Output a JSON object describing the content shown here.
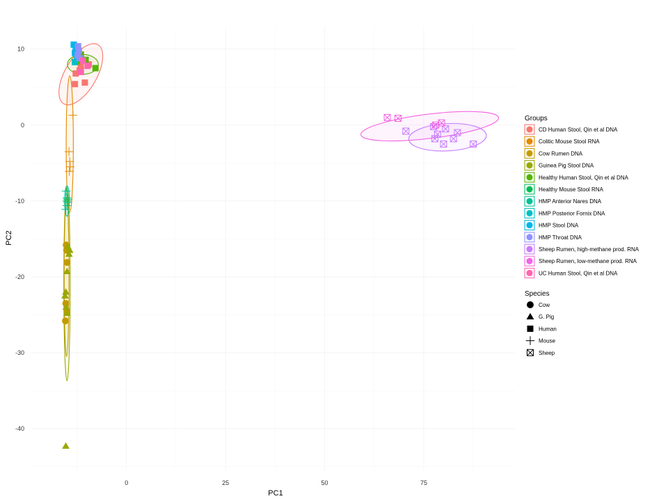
{
  "chart_data": {
    "type": "scatter",
    "title": "",
    "xlabel": "PC1",
    "ylabel": "PC2",
    "xlim": [
      -24,
      98
    ],
    "ylim": [
      -45.5,
      13
    ],
    "x_ticks": [
      0,
      25,
      50,
      75
    ],
    "x_tick_labels": [
      "0",
      "25",
      "50",
      "75"
    ],
    "y_ticks": [
      10,
      0,
      -10,
      -20,
      -30,
      -40
    ],
    "y_tick_labels": [
      "10",
      "0",
      "-10",
      "-20",
      "-30",
      "-40"
    ],
    "grid": true,
    "legend_position": "right",
    "legends": [
      {
        "title": "Groups",
        "entries": [
          {
            "label": "CD Human Stool, Qin et al DNA",
            "color": "#F8766D"
          },
          {
            "label": "Colitic Mouse Stool RNA",
            "color": "#E38900"
          },
          {
            "label": "Cow Rumen DNA",
            "color": "#C49A00"
          },
          {
            "label": "Guinea Pig Stool DNA",
            "color": "#99A800"
          },
          {
            "label": "Healthy Human Stool, Qin et al DNA",
            "color": "#53B400"
          },
          {
            "label": "Healthy Mouse Stool RNA",
            "color": "#00BC56"
          },
          {
            "label": "HMP Anterior Nares DNA",
            "color": "#00C094"
          },
          {
            "label": "HMP Posterior Fornix DNA",
            "color": "#00BFC4"
          },
          {
            "label": "HMP Stool DNA",
            "color": "#00B6EB"
          },
          {
            "label": "HMP Throat DNA",
            "color": "#8F91FF"
          },
          {
            "label": "Sheep Rumen, high-methane prod. RNA",
            "color": "#C77CFF"
          },
          {
            "label": "Sheep Rumen, low-methane prod. RNA",
            "color": "#F564E3"
          },
          {
            "label": "UC Human Stool, Qin et al DNA",
            "color": "#FF64B0"
          }
        ]
      },
      {
        "title": "Species",
        "entries": [
          {
            "label": "Cow",
            "shape": "circle"
          },
          {
            "label": "G. Pig",
            "shape": "triangle"
          },
          {
            "label": "Human",
            "shape": "square"
          },
          {
            "label": "Mouse",
            "shape": "plus"
          },
          {
            "label": "Sheep",
            "shape": "boxcross"
          }
        ]
      }
    ],
    "series": [
      {
        "group": "CD Human Stool, Qin et al DNA",
        "color": "#F8766D",
        "shape": "square",
        "points": [
          [
            -13.0,
            5.4
          ],
          [
            -10.5,
            5.6
          ],
          [
            -12.8,
            6.8
          ],
          [
            -11.5,
            7.8
          ],
          [
            -10.5,
            8.5
          ],
          [
            -11.8,
            7.2
          ],
          [
            -9.5,
            8.0
          ]
        ]
      },
      {
        "group": "Colitic Mouse Stool RNA",
        "color": "#E38900",
        "shape": "plus",
        "points": [
          [
            -13.5,
            1.3
          ],
          [
            -14.5,
            -3.5
          ],
          [
            -14.3,
            -4.8
          ],
          [
            -14.2,
            -5.5
          ],
          [
            -14.4,
            -6.1
          ]
        ]
      },
      {
        "group": "Cow Rumen DNA",
        "color": "#C49A00",
        "shape": "circle",
        "points": [
          [
            -15.2,
            -15.8
          ],
          [
            -15.0,
            -18.1
          ],
          [
            -15.3,
            -23.5
          ],
          [
            -15.0,
            -24.6
          ],
          [
            -15.4,
            -25.8
          ],
          [
            -15.1,
            -16.5
          ]
        ]
      },
      {
        "group": "Guinea Pig Stool DNA",
        "color": "#99A800",
        "shape": "triangle",
        "points": [
          [
            -14.8,
            -16.0
          ],
          [
            -14.3,
            -16.5
          ],
          [
            -14.5,
            -17.0
          ],
          [
            -15.0,
            -19.3
          ],
          [
            -15.3,
            -22.0
          ],
          [
            -15.5,
            -22.5
          ],
          [
            -15.2,
            -24.0
          ],
          [
            -15.0,
            -24.8
          ],
          [
            -15.3,
            -42.3
          ]
        ]
      },
      {
        "group": "Healthy Human Stool, Qin et al DNA",
        "color": "#53B400",
        "shape": "square",
        "points": [
          [
            -10.3,
            8.6
          ],
          [
            -7.8,
            7.5
          ],
          [
            -11.5,
            9.3
          ],
          [
            -12.5,
            8.4
          ]
        ]
      },
      {
        "group": "Healthy Mouse Stool RNA",
        "color": "#00BC56",
        "shape": "plus",
        "points": [
          [
            -15.0,
            -10.0
          ],
          [
            -14.8,
            -9.8
          ]
        ]
      },
      {
        "group": "HMP Anterior Nares DNA",
        "color": "#00C094",
        "shape": "plus",
        "points": [
          [
            -15.2,
            -8.7
          ],
          [
            -15.0,
            -9.6
          ],
          [
            -14.8,
            -10.2
          ],
          [
            -15.3,
            -11.1
          ],
          [
            -15.0,
            -10.6
          ]
        ]
      },
      {
        "group": "HMP Posterior Fornix DNA",
        "color": "#00BFC4",
        "shape": "square",
        "points": [
          [
            -13.0,
            8.3
          ],
          [
            -12.5,
            9.0
          ]
        ]
      },
      {
        "group": "HMP Stool DNA",
        "color": "#00B6EB",
        "shape": "square",
        "points": [
          [
            -13.3,
            10.6
          ],
          [
            -12.8,
            10.0
          ],
          [
            -13.0,
            9.5
          ]
        ]
      },
      {
        "group": "HMP Throat DNA",
        "color": "#8F91FF",
        "shape": "square",
        "points": [
          [
            -12.2,
            10.4
          ],
          [
            -12.0,
            9.8
          ],
          [
            -12.3,
            9.2
          ],
          [
            -11.8,
            8.8
          ]
        ]
      },
      {
        "group": "Sheep Rumen, high-methane prod. RNA",
        "color": "#C77CFF",
        "shape": "boxcross",
        "points": [
          [
            70.5,
            -0.8
          ],
          [
            77.5,
            -0.2
          ],
          [
            78.5,
            -1.2
          ],
          [
            80.5,
            -0.5
          ],
          [
            82.5,
            -1.8
          ],
          [
            83.5,
            -1.0
          ],
          [
            77.8,
            -1.8
          ],
          [
            80.0,
            -2.5
          ],
          [
            87.5,
            -2.5
          ]
        ]
      },
      {
        "group": "Sheep Rumen, low-methane prod. RNA",
        "color": "#F564E3",
        "shape": "boxcross",
        "points": [
          [
            65.8,
            1.0
          ],
          [
            68.5,
            0.9
          ],
          [
            78.0,
            0.0
          ],
          [
            79.5,
            0.3
          ]
        ]
      },
      {
        "group": "UC Human Stool, Qin et al DNA",
        "color": "#FF64B0",
        "shape": "square",
        "points": [
          [
            -11.0,
            8.5
          ],
          [
            -9.8,
            7.8
          ],
          [
            -11.5,
            7.0
          ]
        ]
      }
    ],
    "ellipses": [
      {
        "group": "CD Human Stool, Qin et al DNA",
        "color": "#F8766D",
        "center": [
          -11.5,
          6.7
        ],
        "path": [
          [
            -7.15,
            9.15
          ],
          [
            -15.85,
            4.25
          ],
          [
            -13.28,
            2.42
          ],
          [
            -9.72,
            10.98
          ]
        ],
        "radii": [
          4.0,
          4.5
        ],
        "angle_deg": 30
      },
      {
        "group": "Healthy Human Stool, Qin et al DNA",
        "color": "#53B400",
        "center": [
          -11.0,
          8.0
        ],
        "radii": [
          3.9,
          1.3
        ],
        "angle_deg": 0
      },
      {
        "group": "Colitic Mouse Stool RNA",
        "color": "#E38900",
        "center": [
          -14.3,
          -2.5
        ],
        "radii": [
          0.9,
          9.0
        ],
        "angle_deg": 0
      },
      {
        "group": "Guinea Pig Stool DNA",
        "color": "#99A800",
        "center": [
          -15.0,
          -21.0
        ],
        "radii": [
          0.8,
          12.7
        ],
        "angle_deg": 0
      },
      {
        "group": "Cow Rumen DNA",
        "color": "#C49A00",
        "center": [
          -15.1,
          -20.0
        ],
        "radii": [
          0.6,
          10.5
        ],
        "angle_deg": 0
      },
      {
        "group": "HMP Anterior Nares DNA",
        "color": "#00C094",
        "center": [
          -15.0,
          -10.0
        ],
        "radii": [
          0.6,
          2.0
        ],
        "angle_deg": 0
      },
      {
        "group": "Sheep Rumen, low-methane prod. RNA",
        "color": "#F564E3",
        "center": [
          76.5,
          -0.15
        ],
        "radii": [
          17.5,
          1.6
        ],
        "angle_deg": -7
      },
      {
        "group": "Sheep Rumen, high-methane prod. RNA",
        "color": "#C77CFF",
        "center": [
          81.0,
          -1.6
        ],
        "radii": [
          9.8,
          1.8
        ],
        "angle_deg": -3
      }
    ]
  }
}
